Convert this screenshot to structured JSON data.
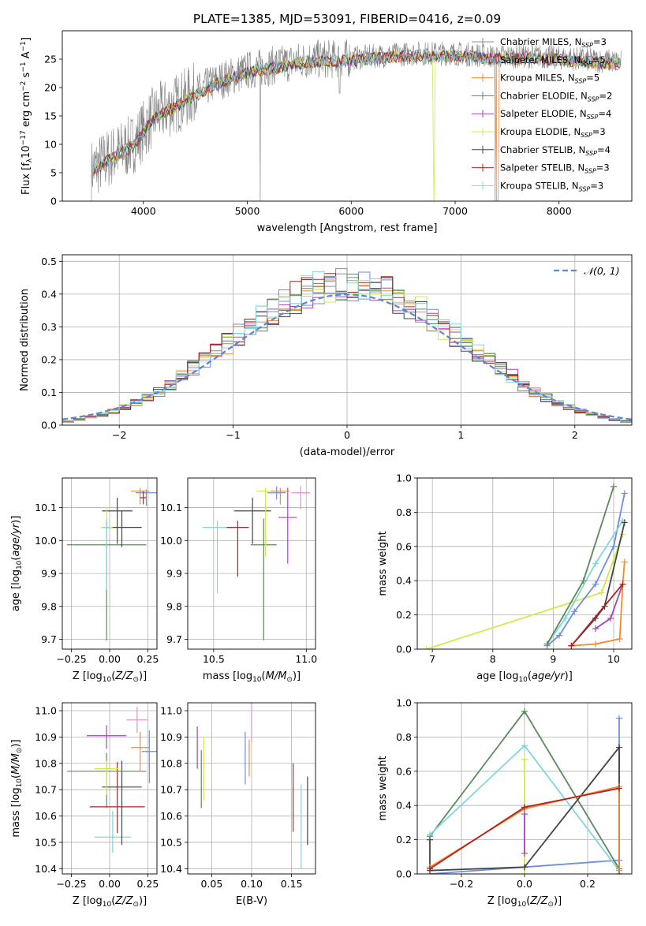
{
  "figure": {
    "title": "PLATE=1385, MJD=53091, FIBERID=0416, z=0.09"
  },
  "colors": {
    "Chabrier MILES": "#888888",
    "Salpeter MILES": "#6e8fe0",
    "Kroupa MILES": "#f28b30",
    "Chabrier ELODIE": "#5b8a5b",
    "Salpeter ELODIE": "#a347b8",
    "Kroupa ELODIE": "#d4e84a",
    "Chabrier STELIB": "#444444",
    "Salpeter STELIB": "#b22222",
    "Kroupa STELIB": "#7fd6dc",
    "normal": "#5b85d6",
    "pink": "#e88fc8"
  },
  "chart_data": [
    {
      "id": "spectrum",
      "type": "line",
      "xlabel": "wavelength [Angstrom, rest frame]",
      "ylabel": "Flux [f_λ10^-17 erg cm^-2 s^-1 A^-1]",
      "xlim": [
        3220,
        8700
      ],
      "ylim": [
        0,
        30
      ],
      "xticks": [
        4000,
        5000,
        6000,
        7000,
        8000
      ],
      "yticks": [
        0,
        5,
        10,
        15,
        20,
        25
      ],
      "grid": false,
      "legend_position": "right",
      "observed_envelope": {
        "x": [
          3500,
          3700,
          3900,
          4100,
          4300,
          4500,
          4700,
          5000,
          5300,
          5600,
          5900,
          6200,
          6600,
          7000,
          7400,
          7800,
          8200,
          8600
        ],
        "y": [
          5.5,
          8,
          10,
          15,
          17,
          19,
          21,
          23,
          24,
          25,
          25,
          25.5,
          26,
          26,
          25.5,
          25.5,
          25,
          24.5
        ]
      },
      "series": [
        {
          "name": "Chabrier MILES, N_SSP=3",
          "label": "Chabrier MILES, N",
          "sub": "SSP",
          "n": "=3"
        },
        {
          "name": "Salpeter MILES, N_SSP=5",
          "label": "Salpeter MILES, N",
          "sub": "SSP",
          "n": "=5"
        },
        {
          "name": "Kroupa MILES, N_SSP=5",
          "label": "Kroupa MILES, N",
          "sub": "SSP",
          "n": "=5"
        },
        {
          "name": "Chabrier ELODIE, N_SSP=2",
          "label": "Chabrier ELODIE, N",
          "sub": "SSP",
          "n": "=2"
        },
        {
          "name": "Salpeter ELODIE, N_SSP=4",
          "label": "Salpeter ELODIE, N",
          "sub": "SSP",
          "n": "=4"
        },
        {
          "name": "Kroupa ELODIE, N_SSP=3",
          "label": "Kroupa ELODIE, N",
          "sub": "SSP",
          "n": "=3"
        },
        {
          "name": "Chabrier STELIB, N_SSP=4",
          "label": "Chabrier STELIB, N",
          "sub": "SSP",
          "n": "=4"
        },
        {
          "name": "Salpeter STELIB, N_SSP=3",
          "label": "Salpeter STELIB, N",
          "sub": "SSP",
          "n": "=3"
        },
        {
          "name": "Kroupa STELIB, N_SSP=3",
          "label": "Kroupa STELIB, N",
          "sub": "SSP",
          "n": "=3"
        }
      ]
    },
    {
      "id": "residuals",
      "type": "step",
      "xlabel": "(data-model)/error",
      "ylabel": "Normed distribution",
      "xlim": [
        -2.5,
        2.5
      ],
      "ylim": [
        0,
        0.52
      ],
      "xticks": [
        -2,
        -1,
        0,
        1,
        2
      ],
      "yticks": [
        0.0,
        0.1,
        0.2,
        0.3,
        0.4,
        0.5
      ],
      "grid": true,
      "legend_position": "top-right",
      "reference_curve": "N(0,1)",
      "legend_label": "𝒩(0, 1)",
      "bin_width": 0.1,
      "bin_centers_from": -2.45
    },
    {
      "id": "age-vs-Z",
      "type": "errorbar",
      "xlabel": "Z [log10(Z/Z⊙)]",
      "ylabel": "age [log10(age/yr)]",
      "xlim": [
        -0.31,
        0.31
      ],
      "ylim": [
        9.67,
        10.19
      ],
      "xticks": [
        -0.25,
        0.0,
        0.25
      ],
      "yticks": [
        9.7,
        9.8,
        9.9,
        10.0,
        10.1
      ],
      "grid": true,
      "points": [
        {
          "color": "Chabrier ELODIE",
          "x": -0.02,
          "xerr": 0.26,
          "y": 9.987,
          "yerr": [
            0.29,
            0.08
          ]
        },
        {
          "color": "Chabrier STELIB",
          "x": 0.08,
          "xerr": 0.13,
          "y": 10.04,
          "yerr": [
            0.06,
            0.05
          ]
        },
        {
          "color": "Chabrier STELIB",
          "x": 0.05,
          "xerr": 0.1,
          "y": 10.09,
          "yerr": [
            0.1,
            0.04
          ]
        },
        {
          "color": "Kroupa ELODIE",
          "x": -0.02,
          "xerr": 0.04,
          "y": 10.04,
          "yerr": [
            0.05,
            0.06
          ]
        },
        {
          "color": "Kroupa STELIB",
          "x": -0.02,
          "xerr": 0.02,
          "y": 10.04,
          "yerr": [
            0.19,
            0.02
          ]
        },
        {
          "color": "Kroupa MILES",
          "x": 0.2,
          "xerr": 0.06,
          "y": 10.15,
          "yerr": [
            0.04,
            0.01
          ]
        },
        {
          "color": "Salpeter MILES",
          "x": 0.24,
          "xerr": 0.07,
          "y": 10.145,
          "yerr": [
            0.04,
            0.01
          ]
        },
        {
          "color": "Salpeter STELIB",
          "x": 0.22,
          "xerr": 0.02,
          "y": 10.13,
          "yerr": [
            0.02,
            0.02
          ]
        }
      ]
    },
    {
      "id": "age-vs-mass",
      "type": "errorbar",
      "xlabel": "mass [log10(M/M⊙)]",
      "ylabel": "",
      "xlim": [
        10.36,
        11.05
      ],
      "ylim": [
        9.67,
        10.19
      ],
      "xticks": [
        10.5,
        11.0
      ],
      "yticks": [
        9.7,
        9.8,
        9.9,
        10.0,
        10.1
      ],
      "grid": true,
      "points": [
        {
          "color": "Kroupa STELIB",
          "x": 10.52,
          "xerr": 0.08,
          "y": 10.04,
          "yerr": [
            0.2,
            0.02
          ]
        },
        {
          "color": "Salpeter STELIB",
          "x": 10.63,
          "xerr": 0.06,
          "y": 10.04,
          "yerr": [
            0.15,
            0.02
          ]
        },
        {
          "color": "Chabrier STELIB",
          "x": 10.71,
          "xerr": 0.1,
          "y": 10.09,
          "yerr": [
            0.1,
            0.04
          ]
        },
        {
          "color": "Chabrier ELODIE",
          "x": 10.77,
          "xerr": 0.07,
          "y": 9.987,
          "yerr": [
            0.29,
            0.08
          ]
        },
        {
          "color": "Kroupa ELODIE",
          "x": 10.78,
          "xerr": 0.05,
          "y": 10.15,
          "yerr": [
            0.2,
            0.01
          ]
        },
        {
          "color": "Salpeter ELODIE",
          "x": 10.9,
          "xerr": 0.05,
          "y": 10.07,
          "yerr": [
            0.14,
            0.09
          ]
        },
        {
          "color": "Kroupa MILES",
          "x": 10.86,
          "xerr": 0.05,
          "y": 10.15,
          "yerr": [
            0.04,
            0.01
          ]
        },
        {
          "color": "Salpeter MILES",
          "x": 10.84,
          "xerr": 0.05,
          "y": 10.145,
          "yerr": [
            0.02,
            0.02
          ]
        },
        {
          "color": "pink",
          "x": 10.97,
          "xerr": 0.05,
          "y": 10.145,
          "yerr": [
            0.05,
            0.02
          ]
        }
      ]
    },
    {
      "id": "weight-vs-age",
      "type": "line",
      "xlabel": "age [log10(age/yr)]",
      "ylabel": "mass weight",
      "xlim": [
        6.75,
        10.3
      ],
      "ylim": [
        0,
        1
      ],
      "xticks": [
        7,
        8,
        9,
        10
      ],
      "yticks": [
        0.0,
        0.2,
        0.4,
        0.6,
        0.8,
        1.0
      ],
      "grid": true,
      "series": [
        {
          "color": "Kroupa ELODIE",
          "x": [
            6.9,
            9.8,
            10.15
          ],
          "y": [
            0.0,
            0.33,
            0.67
          ]
        },
        {
          "color": "Salpeter MILES",
          "x": [
            8.9,
            9.1,
            9.35,
            9.7,
            10.0,
            10.18
          ],
          "y": [
            0.02,
            0.08,
            0.22,
            0.38,
            0.6,
            0.91
          ]
        },
        {
          "color": "Kroupa STELIB",
          "x": [
            8.9,
            9.2,
            9.7,
            10.15
          ],
          "y": [
            0.03,
            0.18,
            0.5,
            0.75
          ]
        },
        {
          "color": "Chabrier ELODIE",
          "x": [
            8.9,
            9.5,
            10.0
          ],
          "y": [
            0.03,
            0.4,
            0.95
          ]
        },
        {
          "color": "Chabrier STELIB",
          "x": [
            9.3,
            9.7,
            9.85,
            10.18
          ],
          "y": [
            0.02,
            0.18,
            0.25,
            0.74
          ]
        },
        {
          "color": "Salpeter ELODIE",
          "x": [
            9.7,
            9.95,
            10.15
          ],
          "y": [
            0.12,
            0.18,
            0.38
          ]
        },
        {
          "color": "Kroupa MILES",
          "x": [
            9.3,
            9.7,
            10.1,
            10.15,
            10.18
          ],
          "y": [
            0.02,
            0.03,
            0.06,
            0.38,
            0.51
          ]
        },
        {
          "color": "Salpeter STELIB",
          "x": [
            9.3,
            10.15
          ],
          "y": [
            0.02,
            0.38
          ]
        }
      ]
    },
    {
      "id": "mass-vs-Z",
      "type": "errorbar",
      "xlabel": "Z [log10(Z/Z⊙)]",
      "ylabel": "mass [log10(M/M⊙)]",
      "xlim": [
        -0.31,
        0.31
      ],
      "ylim": [
        10.38,
        11.03
      ],
      "xticks": [
        -0.25,
        0.0,
        0.25
      ],
      "yticks": [
        10.4,
        10.5,
        10.6,
        10.7,
        10.8,
        10.9,
        11.0
      ],
      "grid": true,
      "points": [
        {
          "color": "Kroupa STELIB",
          "x": 0.02,
          "xerr": 0.12,
          "y": 10.52,
          "yerr": [
            0.06,
            0.1
          ]
        },
        {
          "color": "Salpeter STELIB",
          "x": 0.05,
          "xerr": 0.18,
          "y": 10.635,
          "yerr": [
            0.1,
            0.17
          ]
        },
        {
          "color": "Chabrier STELIB",
          "x": 0.08,
          "xerr": 0.13,
          "y": 10.71,
          "yerr": [
            0.22,
            0.1
          ]
        },
        {
          "color": "Chabrier ELODIE",
          "x": -0.02,
          "xerr": 0.26,
          "y": 10.77,
          "yerr": [
            0.14,
            0.07
          ]
        },
        {
          "color": "Kroupa ELODIE",
          "x": -0.02,
          "xerr": 0.08,
          "y": 10.78,
          "yerr": [
            0.1,
            0.03
          ]
        },
        {
          "color": "Salpeter ELODIE",
          "x": -0.02,
          "xerr": 0.13,
          "y": 10.905,
          "yerr": [
            0.05,
            0.04
          ]
        },
        {
          "color": "Kroupa MILES",
          "x": 0.2,
          "xerr": 0.06,
          "y": 10.86,
          "yerr": [
            0.09,
            0.06
          ]
        },
        {
          "color": "Salpeter MILES",
          "x": 0.26,
          "xerr": 0.05,
          "y": 10.845,
          "yerr": [
            0.12,
            0.08
          ]
        },
        {
          "color": "pink",
          "x": 0.18,
          "xerr": 0.07,
          "y": 10.965,
          "yerr": [
            0.05,
            0.05
          ]
        }
      ]
    },
    {
      "id": "mass-vs-ebv",
      "type": "errorbar",
      "xlabel": "E(B-V)",
      "ylabel": "",
      "xlim": [
        0.02,
        0.18
      ],
      "ylim": [
        10.38,
        11.03
      ],
      "xticks": [
        0.05,
        0.1,
        0.15
      ],
      "yticks": [
        10.4,
        10.5,
        10.6,
        10.7,
        10.8,
        10.9,
        11.0
      ],
      "grid": true,
      "points": [
        {
          "color": "Salpeter ELODIE",
          "x": 0.032,
          "xerr": 0,
          "y": 10.86,
          "yerr": [
            0.08,
            0.08
          ]
        },
        {
          "color": "Chabrier ELODIE",
          "x": 0.037,
          "xerr": 0,
          "y": 10.77,
          "yerr": [
            0.14,
            0.08
          ]
        },
        {
          "color": "Kroupa ELODIE",
          "x": 0.04,
          "xerr": 0,
          "y": 10.78,
          "yerr": [
            0.12,
            0.12
          ]
        },
        {
          "color": "Salpeter MILES",
          "x": 0.092,
          "xerr": 0,
          "y": 10.82,
          "yerr": [
            0.1,
            0.1
          ]
        },
        {
          "color": "Kroupa MILES",
          "x": 0.097,
          "xerr": 0,
          "y": 10.82,
          "yerr": [
            0.07,
            0.07
          ]
        },
        {
          "color": "pink",
          "x": 0.1,
          "xerr": 0,
          "y": 10.96,
          "yerr": [
            0.08,
            0.08
          ]
        },
        {
          "color": "Salpeter STELIB",
          "x": 0.152,
          "xerr": 0,
          "y": 10.67,
          "yerr": [
            0.13,
            0.13
          ]
        },
        {
          "color": "Kroupa STELIB",
          "x": 0.162,
          "xerr": 0,
          "y": 10.55,
          "yerr": [
            0.15,
            0.17
          ]
        },
        {
          "color": "Chabrier STELIB",
          "x": 0.17,
          "xerr": 0,
          "y": 10.62,
          "yerr": [
            0.13,
            0.13
          ]
        }
      ]
    },
    {
      "id": "weight-vs-Z",
      "type": "line",
      "xlabel": "Z [log10(Z/Z⊙)]",
      "ylabel": "mass weight",
      "xlim": [
        -0.34,
        0.34
      ],
      "ylim": [
        0,
        1
      ],
      "xticks": [
        -0.2,
        0.0,
        0.2
      ],
      "yticks": [
        0.0,
        0.2,
        0.4,
        0.6,
        0.8,
        1.0
      ],
      "grid": true,
      "series": [
        {
          "color": "Salpeter MILES",
          "x": [
            -0.3,
            0.0,
            0.3,
            0.3
          ],
          "y": [
            0.0,
            0.04,
            0.08,
            0.91
          ]
        },
        {
          "color": "Chabrier ELODIE",
          "x": [
            -0.3,
            0.0,
            0.3
          ],
          "y": [
            0.22,
            0.95,
            0.03
          ]
        },
        {
          "color": "Kroupa STELIB",
          "x": [
            -0.3,
            0.0,
            0.3
          ],
          "y": [
            0.23,
            0.75,
            0.02
          ]
        },
        {
          "color": "Kroupa ELODIE",
          "x": [
            0.0,
            0.0
          ],
          "y": [
            0.0,
            0.67
          ]
        },
        {
          "color": "Chabrier STELIB",
          "x": [
            -0.3,
            -0.3,
            0.0,
            0.3,
            0.3
          ],
          "y": [
            0.2,
            0.02,
            0.04,
            0.74,
            0.0
          ]
        },
        {
          "color": "Kroupa MILES",
          "x": [
            -0.3,
            0.0,
            0.3,
            0.3
          ],
          "y": [
            0.04,
            0.38,
            0.51,
            0.02
          ]
        },
        {
          "color": "Salpeter STELIB",
          "x": [
            -0.3,
            0.0,
            0.3
          ],
          "y": [
            0.03,
            0.39,
            0.5
          ]
        },
        {
          "color": "Salpeter ELODIE",
          "x": [
            0.0,
            0.0
          ],
          "y": [
            0.12,
            0.35
          ]
        }
      ]
    }
  ]
}
